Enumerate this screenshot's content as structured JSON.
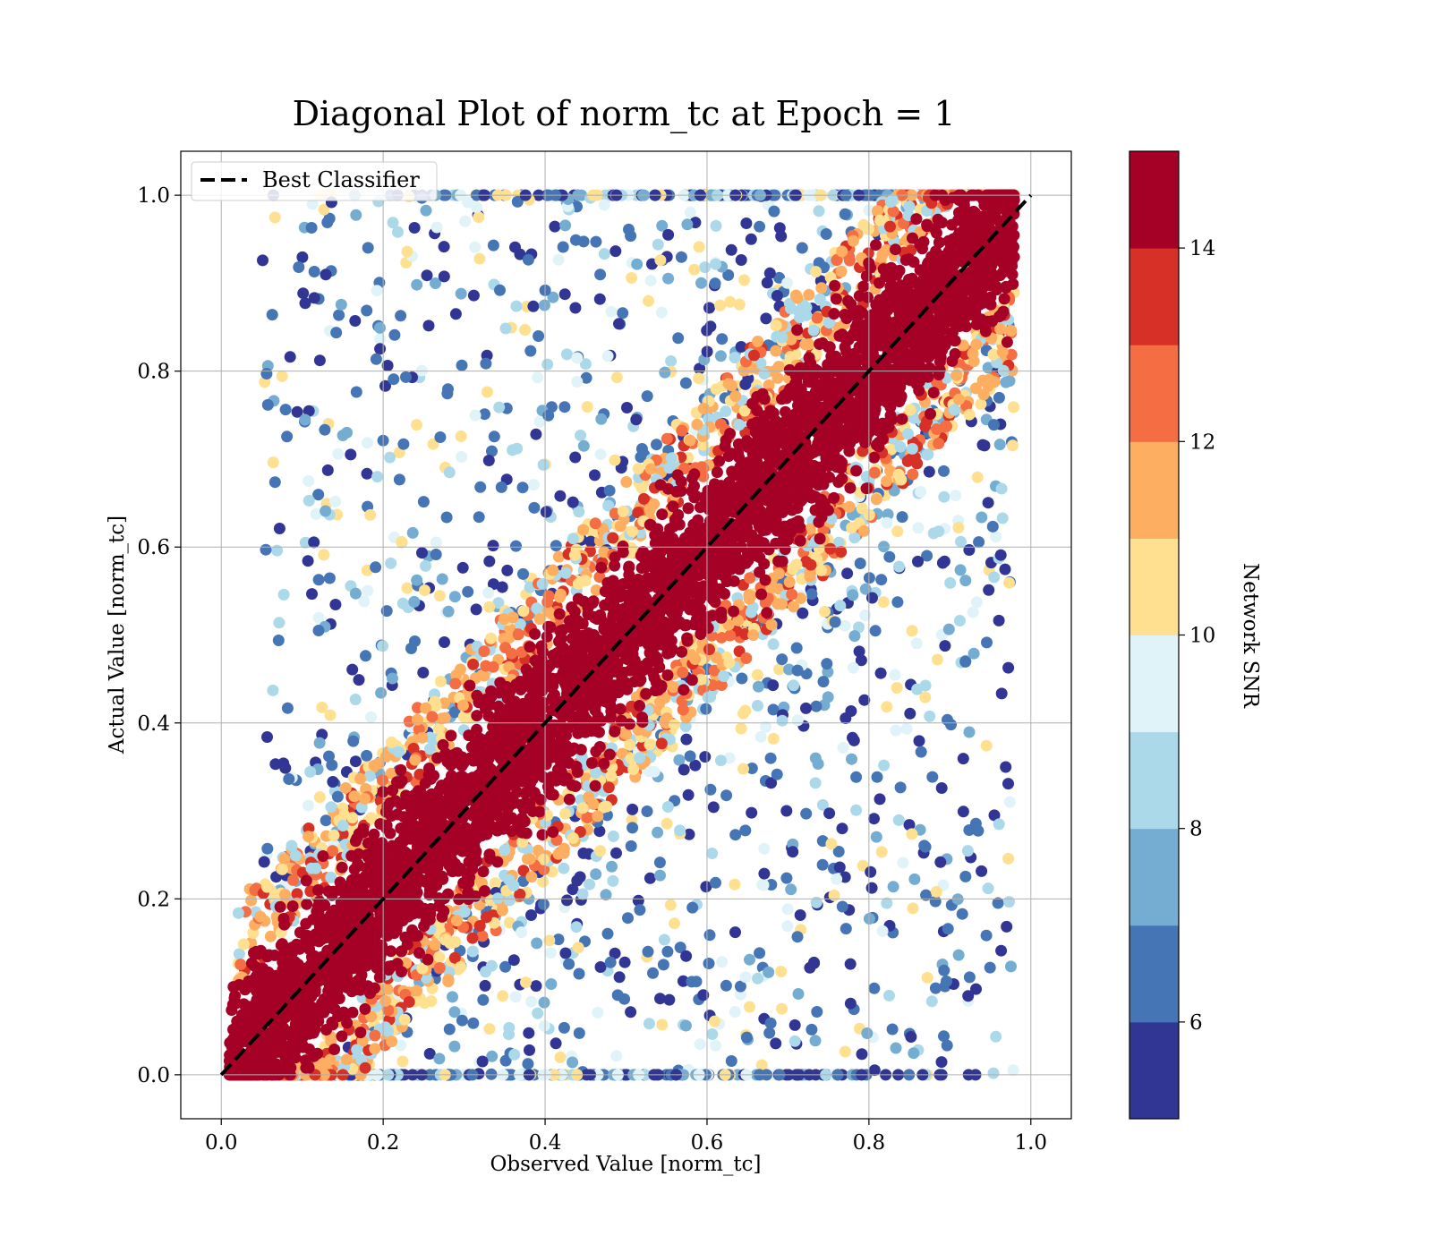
{
  "chart_data": {
    "type": "scatter",
    "title": "Diagonal Plot of norm_tc at Epoch = 1",
    "xlabel": "Observed Value [norm_tc]",
    "ylabel": "Actual Value [norm_tc]",
    "xlim": [
      -0.05,
      1.05
    ],
    "ylim": [
      -0.05,
      1.05
    ],
    "xticks": [
      "0.0",
      "0.2",
      "0.4",
      "0.6",
      "0.8",
      "1.0"
    ],
    "yticks": [
      "0.0",
      "0.2",
      "0.4",
      "0.6",
      "0.8",
      "1.0"
    ],
    "grid": true,
    "legend": {
      "placement": "upper-left",
      "entries": [
        "Best Classifier"
      ]
    },
    "reference_line": {
      "name": "Best Classifier",
      "x": [
        0,
        1
      ],
      "y": [
        0,
        1
      ],
      "style": "dashed",
      "color": "#000000"
    },
    "colorbar": {
      "label": "Network SNR",
      "range": [
        5,
        15
      ],
      "ticks": [
        "6",
        "8",
        "10",
        "12",
        "14"
      ],
      "colors": [
        "#313695",
        "#4575b4",
        "#74add1",
        "#abd9e9",
        "#e0f3f8",
        "#fee090",
        "#fdae61",
        "#f46d43",
        "#d73027",
        "#a50026"
      ]
    },
    "bands": [
      {
        "snr_min": 14,
        "snr_max": 15,
        "color": "#a50026",
        "relation": "y ≈ x",
        "half_width": 0.11
      },
      {
        "snr_min": 10,
        "snr_max": 14,
        "color": "#fdae61",
        "relation": "y ≈ x",
        "half_width": 0.16
      },
      {
        "snr_min": 5,
        "snr_max": 10,
        "color": "#4575b4",
        "relation": "scattered",
        "x_range": [
          0.05,
          0.98
        ]
      }
    ]
  }
}
